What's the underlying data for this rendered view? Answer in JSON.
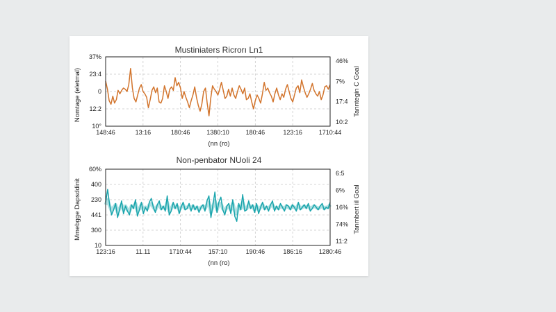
{
  "chart_data": [
    {
      "type": "line",
      "title": "Mustiniaters Ricrorı Ln1",
      "ylabel": "Nomtage (eletmal)",
      "xlabel": "(nn (ro)",
      "right_ylabel": "Tanntegin C Goal",
      "color": "#d2742c",
      "yticks": [
        "37%",
        "23:4",
        "0",
        "12:2",
        "10°"
      ],
      "right_yticks": [
        "46%",
        "7%",
        "17:4",
        "10:2"
      ],
      "xticks": [
        "148:46",
        "13:16",
        "180:46",
        "1380:10",
        "180:46",
        "123:16",
        "1710:44"
      ],
      "ylim": [
        -3,
        3
      ],
      "series": [
        {
          "name": "signal",
          "values": [
            0.9,
            0.2,
            -0.8,
            -1.1,
            -0.4,
            -1.0,
            -0.7,
            0.1,
            -0.2,
            0.1,
            0.3,
            0.2,
            0.0,
            0.6,
            2.0,
            0.3,
            -0.6,
            -0.9,
            -0.3,
            0.3,
            0.6,
            0.0,
            -0.2,
            -0.5,
            -1.4,
            -0.7,
            0.1,
            0.4,
            -0.1,
            0.3,
            -0.9,
            -1.0,
            -0.6,
            0.5,
            0.0,
            -0.6,
            0.2,
            0.4,
            0.1,
            1.2,
            0.5,
            0.8,
            0.3,
            -0.6,
            0.0,
            -0.5,
            -0.9,
            -1.4,
            -0.8,
            -0.3,
            0.4,
            -0.5,
            -1.2,
            -1.7,
            -1.1,
            0.0,
            0.3,
            -1.0,
            -2.1,
            -0.6,
            0.5,
            0.2,
            0.0,
            -0.3,
            0.2,
            0.8,
            0.1,
            -0.6,
            -0.4,
            0.2,
            -0.4,
            0.3,
            -0.3,
            -0.6,
            0.0,
            0.5,
            0.2,
            -0.2,
            0.3,
            -0.7,
            -0.6,
            -0.2,
            -0.9,
            -1.5,
            -0.8,
            -0.3,
            -0.6,
            -1.0,
            -0.2,
            0.8,
            0.1,
            0.3,
            -0.1,
            -0.4,
            -0.9,
            -0.2,
            0.3,
            -0.3,
            -0.7,
            -0.2,
            -0.5,
            0.2,
            0.6,
            0.0,
            -0.6,
            -0.9,
            -0.3,
            0.3,
            0.5,
            -0.1,
            1.0,
            0.4,
            -0.1,
            -0.5,
            -0.2,
            0.2,
            0.7,
            0.1,
            -0.2,
            -0.4,
            0.0,
            -0.7,
            -0.3,
            0.4,
            0.5,
            0.2,
            0.6
          ]
        }
      ]
    },
    {
      "type": "line",
      "title": "Non-penbator NUoli 24",
      "ylabel": "Mmebgge Dapsddinit",
      "xlabel": "(nn (ro)",
      "right_ylabel": "Tanmbert iil Goal",
      "color": "#1aa5ad",
      "yticks": [
        "60%",
        "400",
        "230",
        "441",
        "300",
        "10"
      ],
      "right_yticks": [
        "6:5",
        "6%",
        "16%",
        "74%",
        "11:2"
      ],
      "xticks": [
        "123:16",
        "11.11",
        "1710:44",
        "157:10",
        "190:46",
        "186:16",
        "1280:46"
      ],
      "ylim": [
        -3,
        3
      ],
      "series": [
        {
          "name": "signal",
          "values": [
            0.4,
            1.4,
            0.2,
            -0.6,
            -0.2,
            0.3,
            -0.8,
            -0.2,
            0.5,
            -0.5,
            0.1,
            -0.3,
            -0.6,
            0.2,
            -0.1,
            0.6,
            -0.7,
            -0.2,
            0.4,
            -0.5,
            0.0,
            -0.3,
            0.4,
            0.7,
            0.0,
            -0.4,
            0.2,
            0.5,
            -0.2,
            0.1,
            -0.3,
            0.9,
            -0.6,
            -0.3,
            0.4,
            -0.1,
            0.3,
            -0.5,
            0.0,
            0.4,
            -0.2,
            -0.1,
            0.3,
            -0.3,
            0.2,
            -0.2,
            0.1,
            -0.4,
            0.0,
            0.2,
            -0.3,
            0.5,
            0.9,
            -0.8,
            0.2,
            1.2,
            -0.4,
            0.4,
            0.8,
            -0.2,
            -0.6,
            0.1,
            0.3,
            -0.5,
            0.6,
            -0.7,
            -1.1,
            0.3,
            -0.2,
            1.0,
            -0.3,
            -0.2,
            0.5,
            -0.1,
            0.2,
            -0.4,
            0.3,
            -0.5,
            0.0,
            0.4,
            -0.2,
            0.1,
            -0.3,
            0.2,
            0.5,
            -0.3,
            0.1,
            -0.2,
            0.3,
            0.0,
            -0.3,
            0.2,
            0.1,
            -0.2,
            0.2,
            0.0,
            -0.3,
            0.4,
            -0.2,
            0.0,
            0.2,
            -0.1,
            0.3,
            -0.3,
            -0.1,
            0.2,
            0.0,
            -0.2,
            0.1,
            0.3,
            -0.2,
            0.0,
            -0.1,
            0.4
          ]
        },
        {
          "name": "band",
          "values": [
            0.2,
            0.6,
            0.1,
            -0.3,
            0.0,
            0.2,
            -0.4,
            -0.1,
            0.2,
            -0.2,
            0.1,
            -0.2,
            -0.3,
            0.1,
            0.0,
            0.3,
            -0.3,
            -0.1,
            0.2,
            -0.2,
            0.0,
            -0.1,
            0.2,
            0.3,
            0.0,
            -0.2,
            0.1,
            0.2,
            -0.1,
            0.0,
            -0.1,
            0.4,
            -0.3,
            -0.1,
            0.2,
            0.0,
            0.1,
            -0.2,
            0.0,
            0.2,
            -0.1,
            0.0,
            0.1,
            -0.1,
            0.1,
            -0.1,
            0.0,
            -0.2,
            0.0,
            0.1,
            -0.1,
            0.2,
            0.4,
            -0.4,
            0.1,
            0.5,
            -0.2,
            0.2,
            0.3,
            -0.1,
            -0.3,
            0.0,
            0.1,
            -0.2,
            0.3,
            -0.3,
            -0.5,
            0.1,
            -0.1,
            0.4,
            -0.1,
            -0.1,
            0.2,
            0.0,
            0.1,
            -0.2,
            0.1,
            -0.2,
            0.0,
            0.2,
            -0.1,
            0.0,
            -0.1,
            0.1,
            0.2,
            -0.1,
            0.0,
            -0.1,
            0.1,
            0.0,
            -0.1,
            0.1,
            0.0,
            -0.1,
            0.1,
            0.0,
            -0.1,
            0.2,
            -0.1,
            0.0,
            0.1,
            0.0,
            0.1,
            -0.1,
            0.0,
            0.1,
            0.0,
            -0.1,
            0.0,
            0.1,
            -0.1,
            0.0,
            0.0,
            0.2
          ]
        }
      ]
    }
  ]
}
